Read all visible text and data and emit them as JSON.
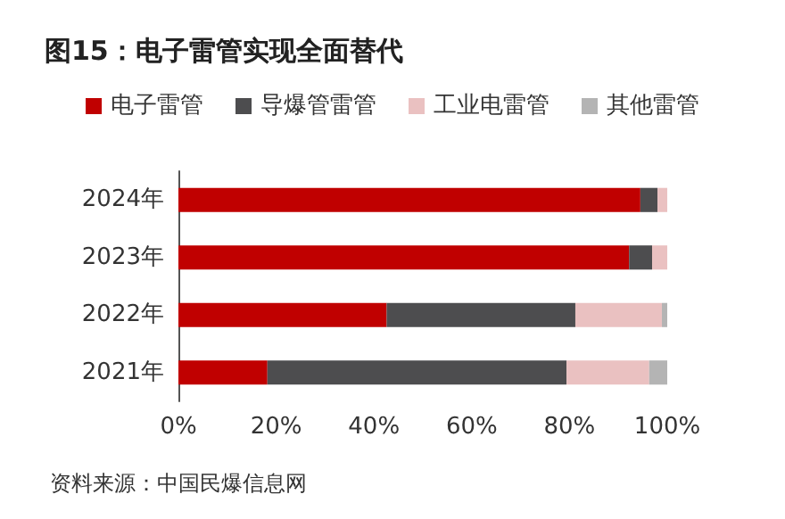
{
  "chart_data": {
    "type": "bar",
    "orientation": "horizontal",
    "stacked": true,
    "title": "图15：电子雷管实现全面替代",
    "categories": [
      "2024年",
      "2023年",
      "2022年",
      "2021年"
    ],
    "series": [
      {
        "name": "电子雷管",
        "color": "#c00000",
        "values": [
          94.5,
          92.2,
          42.6,
          18.2
        ]
      },
      {
        "name": "导爆管雷管",
        "color": "#4d4d4f",
        "values": [
          3.5,
          4.7,
          38.6,
          61.2
        ]
      },
      {
        "name": "工业电雷管",
        "color": "#eac1c1",
        "values": [
          2.0,
          3.1,
          17.7,
          16.9
        ]
      },
      {
        "name": "其他雷管",
        "color": "#b4b4b4",
        "values": [
          0,
          0,
          1.1,
          3.7
        ]
      }
    ],
    "xlim": [
      0,
      100
    ],
    "xticks": [
      {
        "value": 0,
        "label": "0%"
      },
      {
        "value": 20,
        "label": "20%"
      },
      {
        "value": 40,
        "label": "40%"
      },
      {
        "value": 60,
        "label": "60%"
      },
      {
        "value": 80,
        "label": "80%"
      },
      {
        "value": 100,
        "label": "100%"
      }
    ],
    "grid": false,
    "legend": "top",
    "annotations": [
      "资料来源：中国民爆信息网"
    ]
  }
}
